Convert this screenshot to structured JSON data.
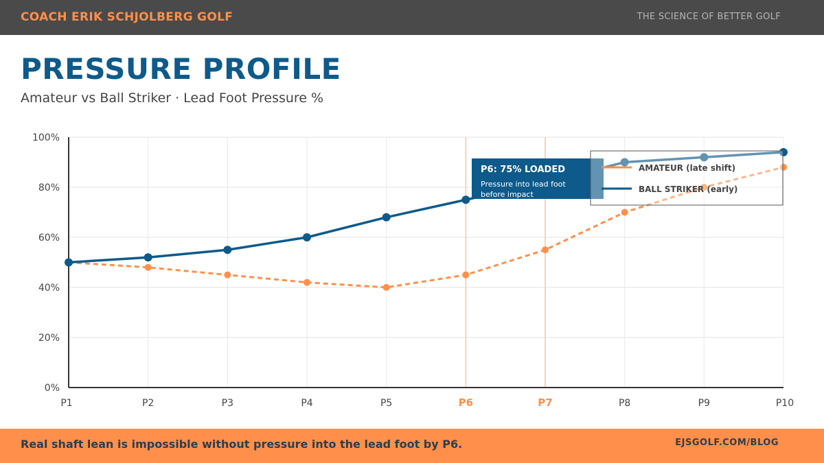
{
  "header": {
    "brand": "COACH ERIK SCHJOLBERG GOLF",
    "tagline": "THE SCIENCE OF BETTER GOLF"
  },
  "title": "PRESSURE PROFILE",
  "subtitle": "Amateur vs Ball Striker · Lead Foot Pressure %",
  "colors": {
    "accent": "#ff8f4a",
    "primary": "#0e5a8a",
    "header_bg": "#4a4a4a"
  },
  "chart_data": {
    "type": "line",
    "categories": [
      "P1",
      "P2",
      "P3",
      "P4",
      "P5",
      "P6",
      "P7",
      "P8",
      "P9",
      "P10"
    ],
    "highlighted_categories": [
      "P6",
      "P7"
    ],
    "ylim": [
      0,
      100
    ],
    "yticks": [
      "0%",
      "20%",
      "40%",
      "60%",
      "80%",
      "100%"
    ],
    "ytick_values": [
      0,
      20,
      40,
      60,
      80,
      100
    ],
    "grid": true,
    "legend_position": "top-right",
    "series": [
      {
        "name": "AMATEUR (late shift)",
        "color": "#ff8f4a",
        "style": "dashed",
        "values": [
          50,
          48,
          45,
          42,
          40,
          45,
          55,
          70,
          80,
          88
        ]
      },
      {
        "name": "BALL STRIKER (early)",
        "color": "#0e5a8a",
        "style": "solid",
        "values": [
          50,
          52,
          55,
          60,
          68,
          75,
          82,
          90,
          92,
          94
        ]
      }
    ],
    "annotation": {
      "category": "P6",
      "title": "P6: 75% LOADED",
      "text_line1": "Pressure into lead foot",
      "text_line2": "before impact"
    }
  },
  "footer": {
    "message": "Real shaft lean is impossible without pressure into the lead foot by P6.",
    "link": "EJSGOLF.COM/BLOG"
  }
}
